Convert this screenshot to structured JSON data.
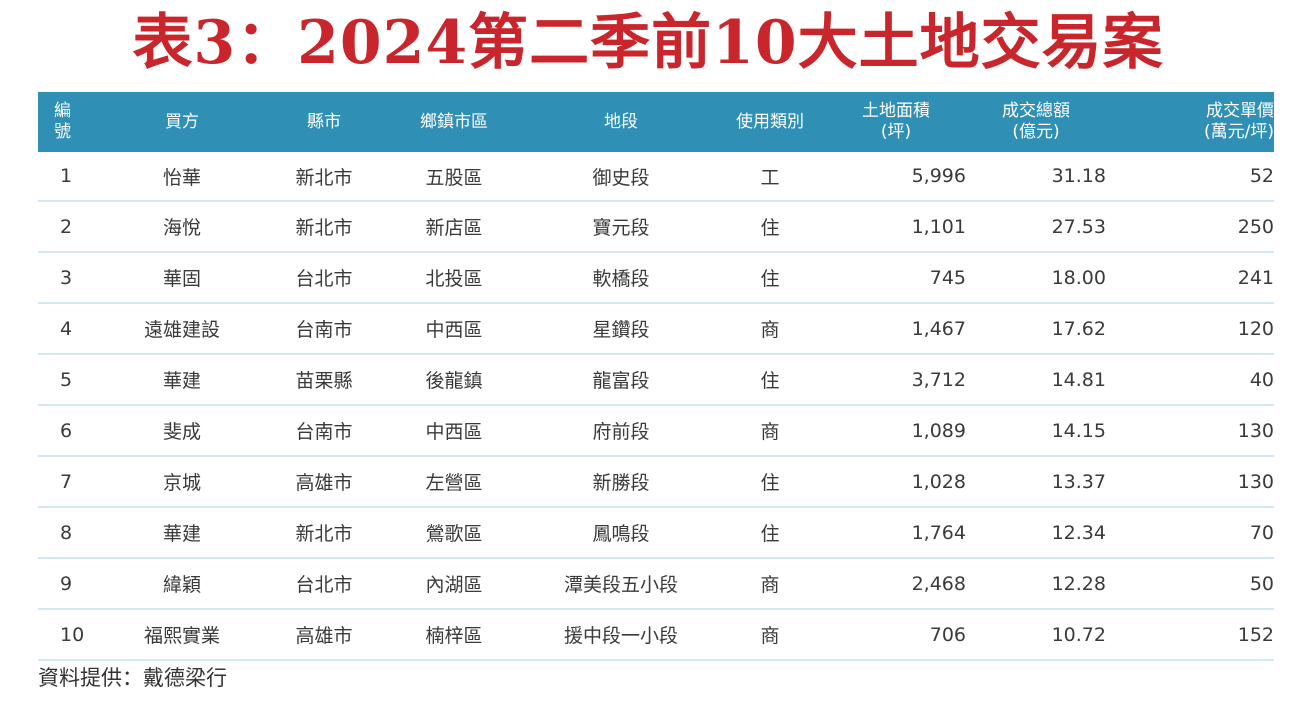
{
  "title": "表3：2024第二季前10大土地交易案",
  "columns": {
    "no_line1": "編",
    "no_line2": "號",
    "buyer": "買方",
    "city": "縣市",
    "district": "鄉鎮市區",
    "section": "地段",
    "use_type": "使用類別",
    "area_line1": "土地面積",
    "area_line2": "(坪)",
    "total_line1": "成交總額",
    "total_line2": "(億元)",
    "unit_line1": "成交單價",
    "unit_line2": "(萬元/坪)"
  },
  "rows": [
    {
      "no": "1",
      "buyer": "怡華",
      "city": "新北市",
      "district": "五股區",
      "section": "御史段",
      "use": "工",
      "area": "5,996",
      "total": "31.18",
      "unit": "52"
    },
    {
      "no": "2",
      "buyer": "海悅",
      "city": "新北市",
      "district": "新店區",
      "section": "寶元段",
      "use": "住",
      "area": "1,101",
      "total": "27.53",
      "unit": "250"
    },
    {
      "no": "3",
      "buyer": "華固",
      "city": "台北市",
      "district": "北投區",
      "section": "軟橋段",
      "use": "住",
      "area": "745",
      "total": "18.00",
      "unit": "241"
    },
    {
      "no": "4",
      "buyer": "遠雄建設",
      "city": "台南市",
      "district": "中西區",
      "section": "星鑽段",
      "use": "商",
      "area": "1,467",
      "total": "17.62",
      "unit": "120"
    },
    {
      "no": "5",
      "buyer": "華建",
      "city": "苗栗縣",
      "district": "後龍鎮",
      "section": "龍富段",
      "use": "住",
      "area": "3,712",
      "total": "14.81",
      "unit": "40"
    },
    {
      "no": "6",
      "buyer": "斐成",
      "city": "台南市",
      "district": "中西區",
      "section": "府前段",
      "use": "商",
      "area": "1,089",
      "total": "14.15",
      "unit": "130"
    },
    {
      "no": "7",
      "buyer": "京城",
      "city": "高雄市",
      "district": "左營區",
      "section": "新勝段",
      "use": "住",
      "area": "1,028",
      "total": "13.37",
      "unit": "130"
    },
    {
      "no": "8",
      "buyer": "華建",
      "city": "新北市",
      "district": "鶯歌區",
      "section": "鳳鳴段",
      "use": "住",
      "area": "1,764",
      "total": "12.34",
      "unit": "70"
    },
    {
      "no": "9",
      "buyer": "緯穎",
      "city": "台北市",
      "district": "內湖區",
      "section": "潭美段五小段",
      "use": "商",
      "area": "2,468",
      "total": "12.28",
      "unit": "50"
    },
    {
      "no": "10",
      "buyer": "福熙實業",
      "city": "高雄市",
      "district": "楠梓區",
      "section": "援中段一小段",
      "use": "商",
      "area": "706",
      "total": "10.72",
      "unit": "152"
    }
  ],
  "source": "資料提供：戴德梁行",
  "colors": {
    "title": "#c8262c",
    "header_bg": "#2f8fb4",
    "header_text": "#ffffff",
    "row_divider": "#d4e8f1"
  }
}
